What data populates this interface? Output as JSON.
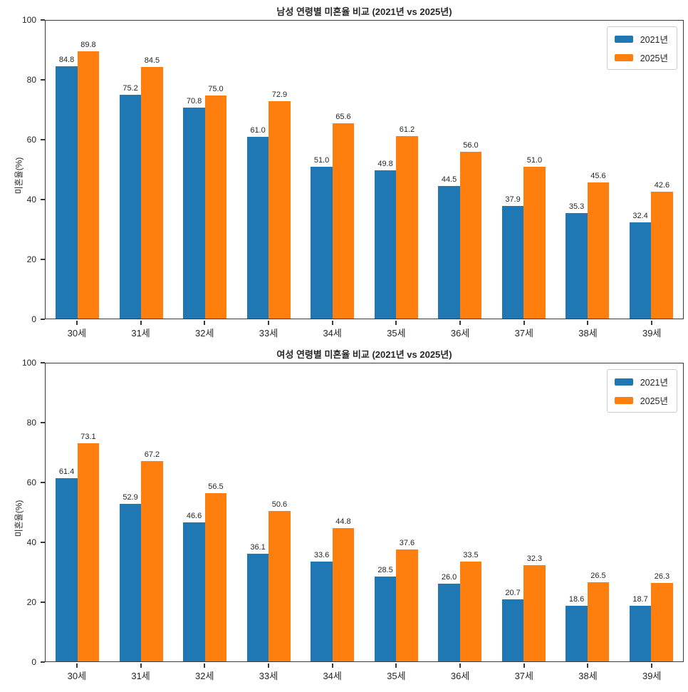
{
  "page": {
    "background": "#ffffff"
  },
  "colors": {
    "series_2021": "#1f77b4",
    "series_2025": "#ff7f0e",
    "text": "#262626",
    "spine": "#3a3a3a",
    "legend_border": "#cccccc"
  },
  "chart_data": [
    {
      "type": "bar",
      "title": "남성 연령별 미혼율 비교 (2021년 vs 2025년)",
      "xlabel": "",
      "ylabel": "미혼율(%)",
      "ylim": [
        0,
        100
      ],
      "yticks": [
        0,
        20,
        40,
        60,
        80,
        100
      ],
      "grid": false,
      "legend_position": "upper right",
      "categories": [
        "30세",
        "31세",
        "32세",
        "33세",
        "34세",
        "35세",
        "36세",
        "37세",
        "38세",
        "39세"
      ],
      "series": [
        {
          "name": "2021년",
          "color": "#1f77b4",
          "values": [
            84.8,
            75.2,
            70.8,
            61.0,
            51.0,
            49.8,
            44.5,
            37.9,
            35.3,
            32.4
          ]
        },
        {
          "name": "2025년",
          "color": "#ff7f0e",
          "values": [
            89.8,
            84.5,
            75.0,
            72.9,
            65.6,
            61.2,
            56.0,
            51.0,
            45.6,
            42.6
          ]
        }
      ]
    },
    {
      "type": "bar",
      "title": "여성 연령별 미혼율 비교 (2021년 vs 2025년)",
      "xlabel": "",
      "ylabel": "미혼율(%)",
      "ylim": [
        0,
        100
      ],
      "yticks": [
        0,
        20,
        40,
        60,
        80,
        100
      ],
      "grid": false,
      "legend_position": "upper right",
      "categories": [
        "30세",
        "31세",
        "32세",
        "33세",
        "34세",
        "35세",
        "36세",
        "37세",
        "38세",
        "39세"
      ],
      "series": [
        {
          "name": "2021년",
          "color": "#1f77b4",
          "values": [
            61.4,
            52.9,
            46.6,
            36.1,
            33.6,
            28.5,
            26.0,
            20.7,
            18.6,
            18.7
          ]
        },
        {
          "name": "2025년",
          "color": "#ff7f0e",
          "values": [
            73.1,
            67.2,
            56.5,
            50.6,
            44.8,
            37.6,
            33.5,
            32.3,
            26.5,
            26.3
          ]
        }
      ]
    }
  ]
}
